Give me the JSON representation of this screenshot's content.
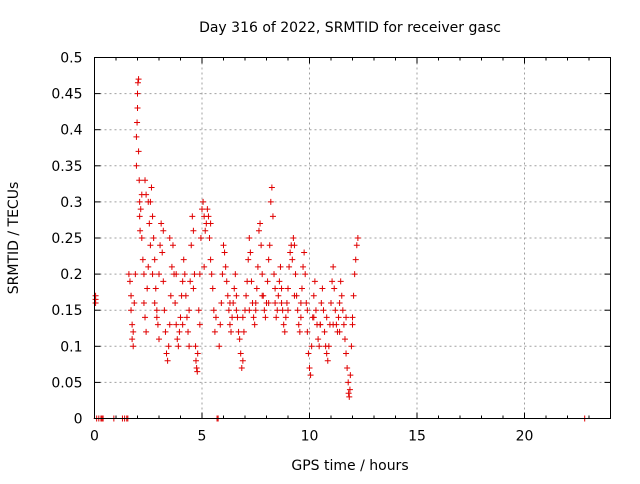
{
  "chart_data": {
    "type": "scatter",
    "title": "Day 316 of 2022, SRMTID for receiver gasc",
    "xlabel": "GPS time / hours",
    "ylabel": "SRMTID / TECUs",
    "xlim": [
      0,
      24
    ],
    "ylim": [
      0,
      0.5
    ],
    "xticks": [
      0,
      5,
      10,
      15,
      20
    ],
    "yticks": [
      0,
      0.05,
      0.1,
      0.15,
      0.2,
      0.25,
      0.3,
      0.35,
      0.4,
      0.45,
      0.5
    ],
    "xtick_labels": [
      "0",
      "5",
      "10",
      "15",
      "20"
    ],
    "ytick_labels": [
      "0",
      "0.05",
      "0.1",
      "0.15",
      "0.2",
      "0.25",
      "0.3",
      "0.35",
      "0.4",
      "0.45",
      "0.5"
    ],
    "grid": true,
    "marker": "+",
    "color": "#e00000",
    "points": [
      [
        0.05,
        0.17
      ],
      [
        0.05,
        0.165
      ],
      [
        0.05,
        0.16
      ],
      [
        0.1,
        0.0
      ],
      [
        0.2,
        0.0
      ],
      [
        0.3,
        0.0
      ],
      [
        0.35,
        0.0
      ],
      [
        0.4,
        0.0
      ],
      [
        0.9,
        0.0
      ],
      [
        1.3,
        0.0
      ],
      [
        1.4,
        0.0
      ],
      [
        1.5,
        0.0
      ],
      [
        1.55,
        0.0
      ],
      [
        5.7,
        0.0
      ],
      [
        5.75,
        0.0
      ],
      [
        22.8,
        0.0
      ],
      [
        1.6,
        0.2
      ],
      [
        1.65,
        0.19
      ],
      [
        1.7,
        0.17
      ],
      [
        1.7,
        0.15
      ],
      [
        1.75,
        0.13
      ],
      [
        1.75,
        0.11
      ],
      [
        1.8,
        0.1
      ],
      [
        1.8,
        0.12
      ],
      [
        1.85,
        0.16
      ],
      [
        1.9,
        0.2
      ],
      [
        1.95,
        0.35
      ],
      [
        1.95,
        0.39
      ],
      [
        1.98,
        0.41
      ],
      [
        2.0,
        0.43
      ],
      [
        2.0,
        0.45
      ],
      [
        2.02,
        0.465
      ],
      [
        2.05,
        0.47
      ],
      [
        2.05,
        0.37
      ],
      [
        2.08,
        0.33
      ],
      [
        2.1,
        0.3
      ],
      [
        2.1,
        0.28
      ],
      [
        2.12,
        0.26
      ],
      [
        2.15,
        0.29
      ],
      [
        2.2,
        0.31
      ],
      [
        2.2,
        0.25
      ],
      [
        2.25,
        0.22
      ],
      [
        2.3,
        0.2
      ],
      [
        2.3,
        0.16
      ],
      [
        2.35,
        0.14
      ],
      [
        2.4,
        0.12
      ],
      [
        2.45,
        0.18
      ],
      [
        2.5,
        0.21
      ],
      [
        2.55,
        0.27
      ],
      [
        2.6,
        0.3
      ],
      [
        2.65,
        0.32
      ],
      [
        2.7,
        0.28
      ],
      [
        2.75,
        0.25
      ],
      [
        2.8,
        0.22
      ],
      [
        2.85,
        0.18
      ],
      [
        2.9,
        0.15
      ],
      [
        2.95,
        0.13
      ],
      [
        3.0,
        0.11
      ],
      [
        2.35,
        0.33
      ],
      [
        2.4,
        0.31
      ],
      [
        2.5,
        0.3
      ],
      [
        2.6,
        0.24
      ],
      [
        2.7,
        0.2
      ],
      [
        2.8,
        0.16
      ],
      [
        2.9,
        0.14
      ],
      [
        3.0,
        0.2
      ],
      [
        3.05,
        0.24
      ],
      [
        3.1,
        0.27
      ],
      [
        3.15,
        0.23
      ],
      [
        3.2,
        0.19
      ],
      [
        3.25,
        0.15
      ],
      [
        3.3,
        0.12
      ],
      [
        3.35,
        0.09
      ],
      [
        3.4,
        0.08
      ],
      [
        3.45,
        0.1
      ],
      [
        3.5,
        0.13
      ],
      [
        3.55,
        0.17
      ],
      [
        3.6,
        0.21
      ],
      [
        3.65,
        0.24
      ],
      [
        3.7,
        0.2
      ],
      [
        3.75,
        0.16
      ],
      [
        3.8,
        0.13
      ],
      [
        3.85,
        0.11
      ],
      [
        3.9,
        0.1
      ],
      [
        3.95,
        0.12
      ],
      [
        4.0,
        0.14
      ],
      [
        4.05,
        0.17
      ],
      [
        4.1,
        0.19
      ],
      [
        4.15,
        0.22
      ],
      [
        4.2,
        0.2
      ],
      [
        4.25,
        0.17
      ],
      [
        4.3,
        0.14
      ],
      [
        4.35,
        0.12
      ],
      [
        4.4,
        0.15
      ],
      [
        4.45,
        0.19
      ],
      [
        4.5,
        0.24
      ],
      [
        4.55,
        0.28
      ],
      [
        4.6,
        0.26
      ],
      [
        4.65,
        0.2
      ],
      [
        4.7,
        0.1
      ],
      [
        4.72,
        0.08
      ],
      [
        4.75,
        0.07
      ],
      [
        4.78,
        0.065
      ],
      [
        4.8,
        0.09
      ],
      [
        4.85,
        0.15
      ],
      [
        4.9,
        0.2
      ],
      [
        4.95,
        0.25
      ],
      [
        5.0,
        0.29
      ],
      [
        5.05,
        0.3
      ],
      [
        5.1,
        0.28
      ],
      [
        5.15,
        0.26
      ],
      [
        5.2,
        0.27
      ],
      [
        5.25,
        0.29
      ],
      [
        5.3,
        0.28
      ],
      [
        5.35,
        0.25
      ],
      [
        5.4,
        0.22
      ],
      [
        5.45,
        0.2
      ],
      [
        5.5,
        0.18
      ],
      [
        5.55,
        0.15
      ],
      [
        5.6,
        0.12
      ],
      [
        5.65,
        0.14
      ],
      [
        3.2,
        0.26
      ],
      [
        3.5,
        0.25
      ],
      [
        3.8,
        0.2
      ],
      [
        4.1,
        0.13
      ],
      [
        4.4,
        0.1
      ],
      [
        4.6,
        0.18
      ],
      [
        4.9,
        0.13
      ],
      [
        5.1,
        0.21
      ],
      [
        5.4,
        0.27
      ],
      [
        5.8,
        0.1
      ],
      [
        5.85,
        0.13
      ],
      [
        5.9,
        0.16
      ],
      [
        5.95,
        0.2
      ],
      [
        6.0,
        0.24
      ],
      [
        6.05,
        0.23
      ],
      [
        6.1,
        0.21
      ],
      [
        6.15,
        0.19
      ],
      [
        6.2,
        0.17
      ],
      [
        6.25,
        0.15
      ],
      [
        6.3,
        0.13
      ],
      [
        6.35,
        0.12
      ],
      [
        6.4,
        0.14
      ],
      [
        6.45,
        0.16
      ],
      [
        6.5,
        0.18
      ],
      [
        6.55,
        0.2
      ],
      [
        6.6,
        0.17
      ],
      [
        6.65,
        0.14
      ],
      [
        6.7,
        0.12
      ],
      [
        6.75,
        0.11
      ],
      [
        6.8,
        0.09
      ],
      [
        6.85,
        0.07
      ],
      [
        6.9,
        0.08
      ],
      [
        6.95,
        0.12
      ],
      [
        7.0,
        0.15
      ],
      [
        7.05,
        0.17
      ],
      [
        7.1,
        0.19
      ],
      [
        7.15,
        0.22
      ],
      [
        7.2,
        0.25
      ],
      [
        7.25,
        0.23
      ],
      [
        7.3,
        0.19
      ],
      [
        7.35,
        0.16
      ],
      [
        7.4,
        0.14
      ],
      [
        7.45,
        0.13
      ],
      [
        7.5,
        0.15
      ],
      [
        7.55,
        0.18
      ],
      [
        7.6,
        0.21
      ],
      [
        7.65,
        0.26
      ],
      [
        7.7,
        0.27
      ],
      [
        7.75,
        0.24
      ],
      [
        7.8,
        0.2
      ],
      [
        7.85,
        0.17
      ],
      [
        7.9,
        0.15
      ],
      [
        7.95,
        0.14
      ],
      [
        8.0,
        0.16
      ],
      [
        8.05,
        0.19
      ],
      [
        8.1,
        0.22
      ],
      [
        8.15,
        0.24
      ],
      [
        8.2,
        0.3
      ],
      [
        8.25,
        0.32
      ],
      [
        8.3,
        0.28
      ],
      [
        8.35,
        0.2
      ],
      [
        8.4,
        0.16
      ],
      [
        8.45,
        0.14
      ],
      [
        8.5,
        0.15
      ],
      [
        8.55,
        0.17
      ],
      [
        8.6,
        0.19
      ],
      [
        8.65,
        0.21
      ],
      [
        8.7,
        0.18
      ],
      [
        8.75,
        0.15
      ],
      [
        8.8,
        0.13
      ],
      [
        8.85,
        0.12
      ],
      [
        8.9,
        0.14
      ],
      [
        8.95,
        0.16
      ],
      [
        9.0,
        0.18
      ],
      [
        9.05,
        0.21
      ],
      [
        9.1,
        0.23
      ],
      [
        9.15,
        0.24
      ],
      [
        9.2,
        0.22
      ],
      [
        9.25,
        0.25
      ],
      [
        9.3,
        0.24
      ],
      [
        9.35,
        0.2
      ],
      [
        9.4,
        0.17
      ],
      [
        9.45,
        0.15
      ],
      [
        9.5,
        0.13
      ],
      [
        9.55,
        0.12
      ],
      [
        9.6,
        0.14
      ],
      [
        9.65,
        0.18
      ],
      [
        9.7,
        0.21
      ],
      [
        9.75,
        0.23
      ],
      [
        9.8,
        0.2
      ],
      [
        9.85,
        0.16
      ],
      [
        9.9,
        0.12
      ],
      [
        9.95,
        0.09
      ],
      [
        10.0,
        0.07
      ],
      [
        10.05,
        0.06
      ],
      [
        10.1,
        0.1
      ],
      [
        10.15,
        0.14
      ],
      [
        10.2,
        0.17
      ],
      [
        10.25,
        0.19
      ],
      [
        10.3,
        0.15
      ],
      [
        10.35,
        0.13
      ],
      [
        10.4,
        0.11
      ],
      [
        10.45,
        0.1
      ],
      [
        10.5,
        0.13
      ],
      [
        10.55,
        0.16
      ],
      [
        10.6,
        0.18
      ],
      [
        10.65,
        0.15
      ],
      [
        10.7,
        0.12
      ],
      [
        10.75,
        0.1
      ],
      [
        10.8,
        0.09
      ],
      [
        10.85,
        0.08
      ],
      [
        10.9,
        0.1
      ],
      [
        10.95,
        0.13
      ],
      [
        11.0,
        0.16
      ],
      [
        11.05,
        0.19
      ],
      [
        11.1,
        0.21
      ],
      [
        11.15,
        0.18
      ],
      [
        11.2,
        0.15
      ],
      [
        11.25,
        0.13
      ],
      [
        11.3,
        0.12
      ],
      [
        11.35,
        0.14
      ],
      [
        11.4,
        0.16
      ],
      [
        11.45,
        0.19
      ],
      [
        11.5,
        0.17
      ],
      [
        11.55,
        0.15
      ],
      [
        11.6,
        0.13
      ],
      [
        11.65,
        0.11
      ],
      [
        11.7,
        0.09
      ],
      [
        11.75,
        0.07
      ],
      [
        11.8,
        0.05
      ],
      [
        11.82,
        0.035
      ],
      [
        11.85,
        0.03
      ],
      [
        11.88,
        0.04
      ],
      [
        11.9,
        0.06
      ],
      [
        11.95,
        0.1
      ],
      [
        12.0,
        0.14
      ],
      [
        12.05,
        0.17
      ],
      [
        12.1,
        0.2
      ],
      [
        12.15,
        0.22
      ],
      [
        12.2,
        0.24
      ],
      [
        12.25,
        0.25
      ],
      [
        6.3,
        0.16
      ],
      [
        6.6,
        0.15
      ],
      [
        6.9,
        0.14
      ],
      [
        7.2,
        0.15
      ],
      [
        7.5,
        0.16
      ],
      [
        7.8,
        0.17
      ],
      [
        8.1,
        0.16
      ],
      [
        8.4,
        0.18
      ],
      [
        8.7,
        0.16
      ],
      [
        9.0,
        0.15
      ],
      [
        9.3,
        0.17
      ],
      [
        9.6,
        0.16
      ],
      [
        9.9,
        0.15
      ],
      [
        10.2,
        0.14
      ],
      [
        10.5,
        0.13
      ],
      [
        10.8,
        0.14
      ],
      [
        11.1,
        0.13
      ],
      [
        11.4,
        0.12
      ],
      [
        11.7,
        0.14
      ],
      [
        12.0,
        0.13
      ]
    ]
  }
}
